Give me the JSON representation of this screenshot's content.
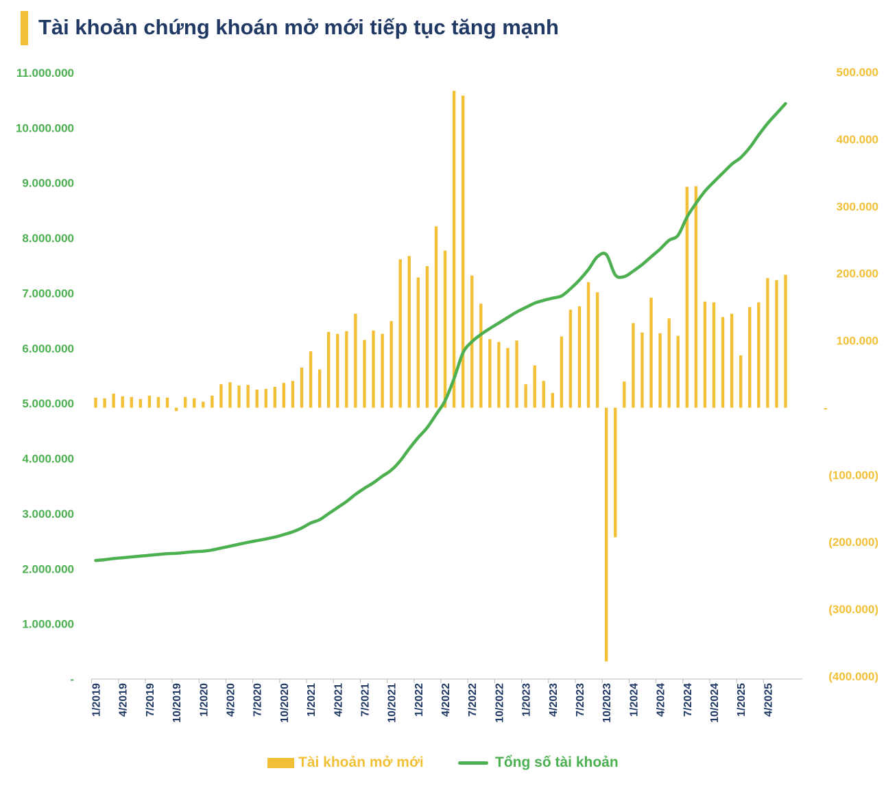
{
  "title": "Tài khoản chứng khoán mở mới tiếp tục tăng mạnh",
  "legend": {
    "bars": "Tài khoản mở mới",
    "line": "Tổng số tài khoản"
  },
  "colors": {
    "bar": "#F2C037",
    "line": "#4CAF50",
    "title": "#1F3864",
    "axis_left": "#4CAF50",
    "axis_right": "#F2C037"
  },
  "chart_data": {
    "type": "bar+line",
    "x_tick_labels": [
      "1/2019",
      "4/2019",
      "7/2019",
      "10/2019",
      "1/2020",
      "4/2020",
      "7/2020",
      "10/2020",
      "1/2021",
      "4/2021",
      "7/2021",
      "10/2021",
      "1/2022",
      "4/2022",
      "7/2022",
      "10/2022",
      "1/2023",
      "4/2023",
      "7/2023",
      "10/2023",
      "1/2024",
      "4/2024",
      "7/2024",
      "10/2024",
      "1/2025",
      "4/2025"
    ],
    "left_axis": {
      "min": 0,
      "max": 11000000,
      "step": 1000000,
      "tick_labels": [
        "-",
        "1.000.000",
        "2.000.000",
        "3.000.000",
        "4.000.000",
        "5.000.000",
        "6.000.000",
        "7.000.000",
        "8.000.000",
        "9.000.000",
        "10.000.000",
        "11.000.000"
      ]
    },
    "right_axis": {
      "min": -400000,
      "max": 500000,
      "step": 100000,
      "tick_labels": [
        "(400.000)",
        "(300.000)",
        "(200.000)",
        "(100.000)",
        "-",
        "100.000",
        "200.000",
        "300.000",
        "400.000",
        "500.000"
      ]
    },
    "series": [
      {
        "name": "Tài khoản mở mới",
        "type": "bar",
        "axis": "right",
        "values": [
          15000,
          14000,
          21000,
          17000,
          16000,
          13000,
          18000,
          16000,
          15000,
          -5000,
          16000,
          14000,
          9000,
          18000,
          35000,
          38000,
          33000,
          34000,
          27000,
          28000,
          31000,
          37000,
          40000,
          60000,
          84000,
          57000,
          113000,
          110000,
          114000,
          140000,
          101000,
          115000,
          110000,
          129000,
          221000,
          226000,
          194000,
          211000,
          270000,
          234000,
          472000,
          465000,
          197000,
          155000,
          102000,
          98000,
          89000,
          100000,
          35000,
          63000,
          40000,
          22000,
          106000,
          146000,
          151000,
          187000,
          172000,
          -378000,
          -193000,
          39000,
          126000,
          112000,
          164000,
          111000,
          133000,
          107000,
          329000,
          330000,
          158000,
          157000,
          135000,
          140000,
          78000,
          150000,
          157000,
          193000,
          190000,
          198000
        ]
      },
      {
        "name": "Tổng số tài khoản",
        "type": "line",
        "axis": "left",
        "values": [
          2150000,
          2165000,
          2185000,
          2200000,
          2215000,
          2230000,
          2245000,
          2260000,
          2275000,
          2280000,
          2295000,
          2310000,
          2320000,
          2340000,
          2375000,
          2410000,
          2445000,
          2480000,
          2510000,
          2540000,
          2575000,
          2620000,
          2670000,
          2740000,
          2830000,
          2890000,
          3000000,
          3110000,
          3220000,
          3350000,
          3460000,
          3560000,
          3680000,
          3790000,
          3960000,
          4180000,
          4380000,
          4560000,
          4800000,
          5050000,
          5450000,
          5920000,
          6120000,
          6250000,
          6360000,
          6460000,
          6560000,
          6660000,
          6740000,
          6820000,
          6870000,
          6910000,
          6950000,
          7080000,
          7240000,
          7430000,
          7660000,
          7700000,
          7330000,
          7300000,
          7400000,
          7520000,
          7660000,
          7800000,
          7960000,
          8050000,
          8380000,
          8630000,
          8850000,
          9020000,
          9180000,
          9340000,
          9460000,
          9640000,
          9870000,
          10080000,
          10260000,
          10440000
        ]
      }
    ]
  }
}
